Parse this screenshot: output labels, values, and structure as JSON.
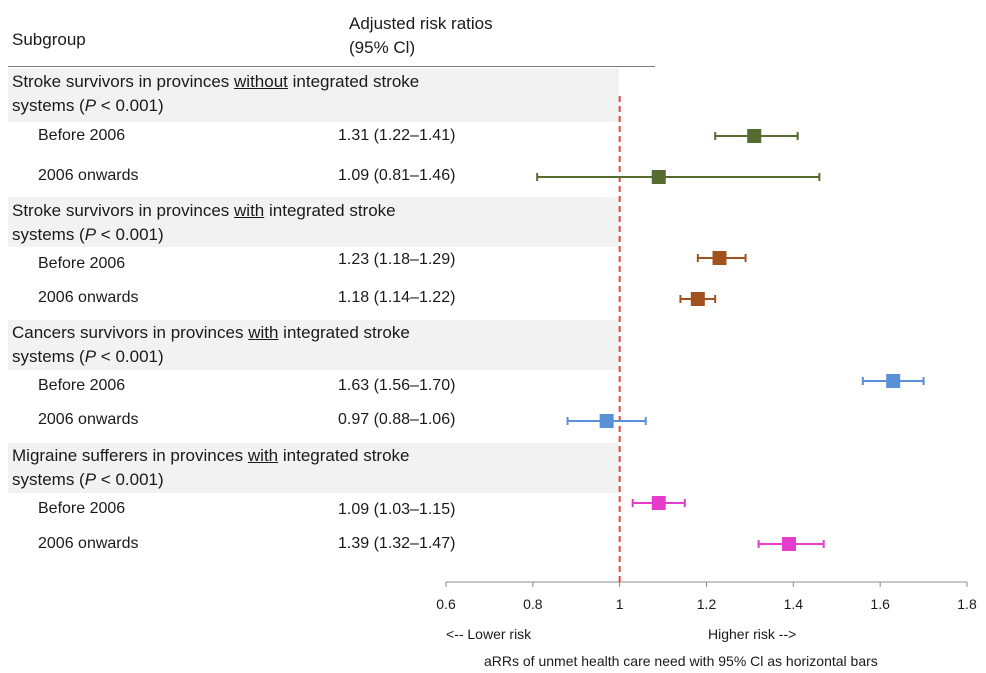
{
  "header": {
    "subgroup_label": "Subgroup",
    "arr_label_line1": "Adjusted risk ratios",
    "arr_label_line2": "(95% Cl)"
  },
  "groups": [
    {
      "title_pre": "Stroke survivors in provinces ",
      "title_emph": "without",
      "title_post": " integrated stroke",
      "title_line2_pre": "systems (",
      "p_symbol": "P",
      "p_value": " < 0.001)",
      "color": "#556b2f",
      "rows": [
        {
          "label": "Before 2006",
          "estimate_text": "1.31 (1.22–1.41)"
        },
        {
          "label": "2006 onwards",
          "estimate_text": "1.09 (0.81–1.46)"
        }
      ]
    },
    {
      "title_pre": "Stroke survivors in provinces ",
      "title_emph": "with",
      "title_post": " integrated stroke",
      "title_line2_pre": "systems (",
      "p_symbol": "P",
      "p_value": " < 0.001)",
      "color": "#a0521e",
      "rows": [
        {
          "label": "Before 2006",
          "estimate_text": "1.23 (1.18–1.29)"
        },
        {
          "label": "2006 onwards",
          "estimate_text": "1.18 (1.14–1.22)"
        }
      ]
    },
    {
      "title_pre": "Cancers survivors in provinces ",
      "title_emph": "with",
      "title_post": " integrated stroke",
      "title_line2_pre": "systems (",
      "p_symbol": "P",
      "p_value": " < 0.001)",
      "color": "#5b8fd6",
      "rows": [
        {
          "label": "Before 2006",
          "estimate_text": "1.63 (1.56–1.70)"
        },
        {
          "label": "2006 onwards",
          "estimate_text": "0.97 (0.88–1.06)"
        }
      ]
    },
    {
      "title_pre": "Migraine sufferers in provinces ",
      "title_emph": "with",
      "title_post": " integrated stroke",
      "title_line2_pre": "systems (",
      "p_symbol": "P",
      "p_value": " < 0.001)",
      "color": "#e63ccc",
      "rows": [
        {
          "label": "Before 2006",
          "estimate_text": "1.09 (1.03–1.15)"
        },
        {
          "label": "2006 onwards",
          "estimate_text": "1.39 (1.32–1.47)"
        }
      ]
    }
  ],
  "chart_data": {
    "type": "forest",
    "xlim": [
      0.6,
      1.8
    ],
    "x_ticks": [
      "0.6",
      "0.8",
      "1",
      "1.2",
      "1.4",
      "1.6",
      "1.8"
    ],
    "reference_line": 1,
    "reference_color": "#e8453c",
    "points": [
      {
        "group": 0,
        "label": "Before 2006",
        "est": 1.31,
        "lo": 1.22,
        "hi": 1.41
      },
      {
        "group": 0,
        "label": "2006 onwards",
        "est": 1.09,
        "lo": 0.81,
        "hi": 1.46
      },
      {
        "group": 1,
        "label": "Before 2006",
        "est": 1.23,
        "lo": 1.18,
        "hi": 1.29
      },
      {
        "group": 1,
        "label": "2006 onwards",
        "est": 1.18,
        "lo": 1.14,
        "hi": 1.22
      },
      {
        "group": 2,
        "label": "Before 2006",
        "est": 1.63,
        "lo": 1.56,
        "hi": 1.7
      },
      {
        "group": 2,
        "label": "2006 onwards",
        "est": 0.97,
        "lo": 0.88,
        "hi": 1.06
      },
      {
        "group": 3,
        "label": "Before 2006",
        "est": 1.09,
        "lo": 1.03,
        "hi": 1.15
      },
      {
        "group": 3,
        "label": "2006 onwards",
        "est": 1.39,
        "lo": 1.32,
        "hi": 1.47
      }
    ],
    "lower_risk_label": "<-- Lower risk",
    "higher_risk_label": "Higher risk -->",
    "xlabel": "aRRs of unmet health care need with 95% Cl as horizontal bars"
  }
}
